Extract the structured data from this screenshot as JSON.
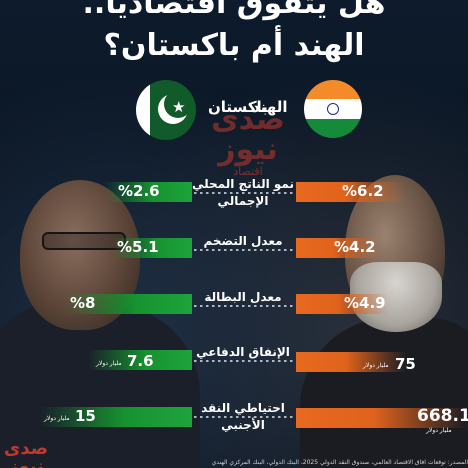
{
  "title": {
    "line1": "هل يتفوق اقتصاديا..",
    "line2": "الهند أم باكستان؟"
  },
  "countries": {
    "india": "الهند",
    "pakistan": "باكستان"
  },
  "logo": {
    "main": "صدى نيوز",
    "sub": "اقتصاد"
  },
  "rows": [
    {
      "label": "نمو الناتج المحلي الإجمالي",
      "india": "%6.2",
      "pakistan": "%2.6",
      "india_unit": "",
      "pakistan_unit": ""
    },
    {
      "label": "معدل التضخم",
      "india": "%4.2",
      "pakistan": "%5.1",
      "india_unit": "",
      "pakistan_unit": ""
    },
    {
      "label": "معدل البطالة",
      "india": "%4.9",
      "pakistan": "%8",
      "india_unit": "",
      "pakistan_unit": ""
    },
    {
      "label": "الإنفاق الدفاعي",
      "india": "75",
      "pakistan": "7.6",
      "india_unit": "مليار دولار",
      "pakistan_unit": "مليار دولار"
    },
    {
      "label": "احتياطي النقد الأجنبي",
      "india": "668.1",
      "pakistan": "15",
      "india_unit": "مليار دولار",
      "pakistan_unit": "مليار دولار"
    }
  ],
  "footer": "المصدر: توقعات آفاق الاقتصاد العالمي، صندوق النقد الدولي 2025، البنك الدولي، البنك المركزي الهندي",
  "colors": {
    "india_bar": "#e0631c",
    "pakistan_bar": "#16922f",
    "background": "#0b1726",
    "brand": "#c0392b"
  }
}
